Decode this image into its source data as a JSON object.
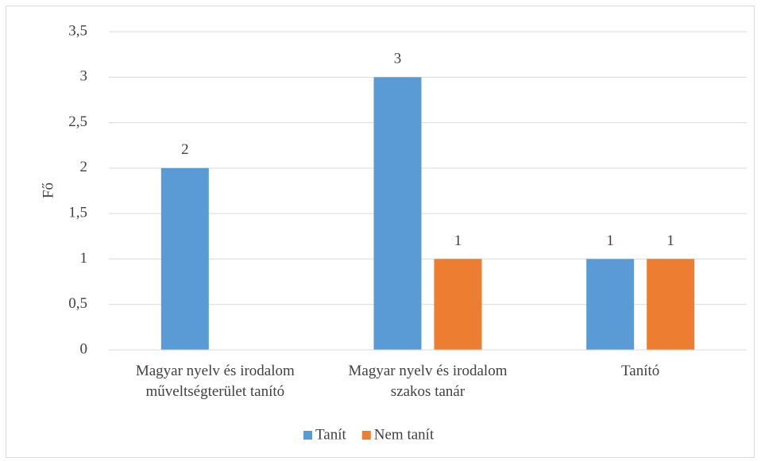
{
  "chart_data": {
    "type": "bar",
    "categories": [
      "Magyar nyelv és irodalom\nműveltségterület tanító",
      "Magyar nyelv és irodalom\nszakos tanár",
      "Tanító"
    ],
    "series": [
      {
        "name": "Tanít",
        "color": "#5b9bd5",
        "values": [
          2,
          3,
          1
        ]
      },
      {
        "name": "Nem tanít",
        "color": "#ed7d31",
        "values": [
          null,
          1,
          1
        ]
      }
    ],
    "ylabel": "Fő",
    "ylim": [
      0,
      3.5
    ],
    "yticks": [
      0,
      {
        "value": 0.5,
        "label": "0,5"
      },
      1,
      {
        "value": 1.5,
        "label": "1,5"
      },
      2,
      {
        "value": 2.5,
        "label": "2,5"
      },
      3,
      {
        "value": 3.5,
        "label": "3,5"
      }
    ],
    "grid": true,
    "legend": "bottom"
  }
}
